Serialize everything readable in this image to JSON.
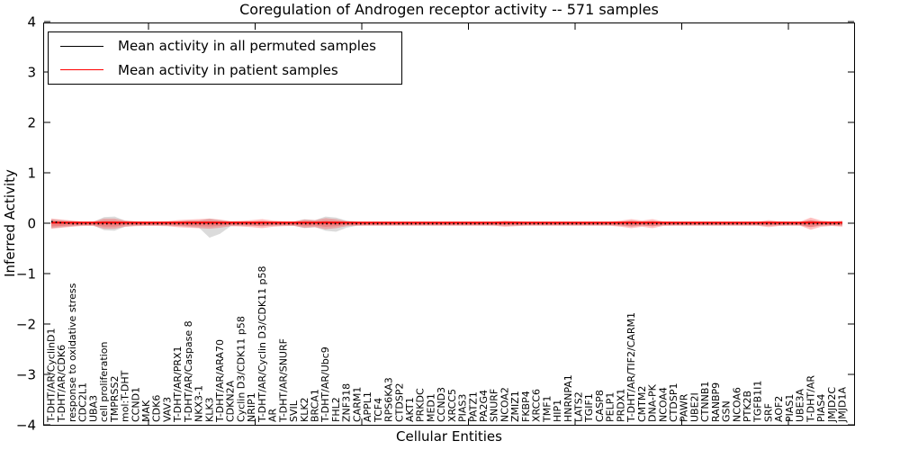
{
  "chart_data": {
    "type": "line",
    "title": "Coregulation of Androgen receptor activity -- 571 samples",
    "xlabel": "Cellular Entities",
    "ylabel": "Inferred Activity",
    "ylim": [
      -4,
      4
    ],
    "ytick_labels": [
      "4",
      "3",
      "2",
      "1",
      "0",
      "−1",
      "−2",
      "−3",
      "−4"
    ],
    "ytick_values": [
      4,
      3,
      2,
      1,
      0,
      -1,
      -2,
      -3,
      -4
    ],
    "grid": false,
    "legend_position": "upper left",
    "sample_count": "571",
    "categories": [
      "T-DHT/AR/CyclinD1",
      "T-DHT/AR/CDK6",
      "response to oxidative stress",
      "CDC2L1",
      "UBA3",
      "cell proliferation",
      "TMPRSS2",
      "mol:T-DHT",
      "CCND1",
      "MAK",
      "CDK6",
      "VAV3",
      "T-DHT/AR/PRX1",
      "T-DHT/AR/Caspase 8",
      "NKX3-1",
      "KLK3",
      "T-DHT/AR/ARA70",
      "CDKN2A",
      "Cyclin D3/CDK11 p58",
      "NRIP1",
      "T-DHT/AR/Cyclin D3/CDK11 p58",
      "AR",
      "T-DHT/AR/SNURF",
      "SVIL",
      "KLK2",
      "BRCA1",
      "T-DHT/AR/Ubc9",
      "FHL2",
      "ZNF318",
      "CARM1",
      "APPL1",
      "TCF4",
      "RPS6KA3",
      "CTDSP2",
      "AKT1",
      "PRKDC",
      "MED1",
      "CCND3",
      "XRCC5",
      "PIAS3",
      "PATZ1",
      "PA2G4",
      "SNURF",
      "NCOA2",
      "ZMIZ1",
      "FKBP4",
      "XRCC6",
      "TMF1",
      "HIP1",
      "HNRNPA1",
      "LATS2",
      "TGIF1",
      "CASP8",
      "PELP1",
      "PRDX1",
      "T-DHT/AR/TIF2/CARM1",
      "CMTM2",
      "DNA-PK",
      "NCOA4",
      "CTDSP1",
      "PAWR",
      "UBE2I",
      "CTNNB1",
      "RANBP9",
      "GSN",
      "NCOA6",
      "PTK2B",
      "TGFB1I1",
      "SRF",
      "AOF2",
      "PIAS1",
      "UBE3A",
      "T-DHT/AR",
      "PIAS4",
      "JMJD2C",
      "JMJD1A"
    ],
    "series": [
      {
        "name": "Mean activity in all permuted samples",
        "color": "#000000",
        "line_style": "dotted",
        "values": [
          0.04,
          0.015,
          0,
          0,
          0,
          0,
          0,
          0,
          0,
          0,
          0,
          0,
          0,
          0,
          0,
          0,
          0,
          0,
          0,
          0,
          0,
          0,
          0,
          0,
          0,
          0,
          0,
          0,
          0,
          0,
          0,
          0,
          0,
          0,
          0,
          0,
          0,
          0,
          0,
          0,
          0,
          0,
          0,
          0,
          0,
          0,
          0,
          0,
          0,
          0,
          0,
          0,
          0,
          0,
          0,
          0,
          0,
          0,
          0,
          0,
          0,
          0,
          0,
          0,
          0,
          0,
          0,
          0,
          0,
          0,
          0,
          0,
          0,
          0,
          0,
          0
        ]
      },
      {
        "name": "Mean activity in patient samples",
        "color": "#ff0000",
        "line_style": "solid",
        "values": [
          0.02,
          0.02,
          0.02,
          0.02,
          0.02,
          0.02,
          0.02,
          0.02,
          0.02,
          0.02,
          0.02,
          0.02,
          0.02,
          0.02,
          0.02,
          0.02,
          0.02,
          0.02,
          0.02,
          0.02,
          0.02,
          0.02,
          0.02,
          0.02,
          0.02,
          0.02,
          0.02,
          0.02,
          0.02,
          0.02,
          0.02,
          0.02,
          0.02,
          0.02,
          0.02,
          0.02,
          0.02,
          0.02,
          0.02,
          0.02,
          0.02,
          0.02,
          0.02,
          0.02,
          0.02,
          0.02,
          0.02,
          0.02,
          0.02,
          0.02,
          0.02,
          0.02,
          0.02,
          0.02,
          0.02,
          0.02,
          0.02,
          0.02,
          0.02,
          0.02,
          0.02,
          0.02,
          0.02,
          0.02,
          0.02,
          0.02,
          0.02,
          0.02,
          0.02,
          0.02,
          0.02,
          0.02,
          0.02,
          0.02,
          0.02,
          0.02
        ]
      }
    ],
    "bands": [
      {
        "name": "permuted-activity-range",
        "color": "#999999",
        "opacity": 0.35,
        "upper": [
          0.09,
          0.07,
          0.05,
          0.035,
          0.035,
          0.13,
          0.14,
          0.06,
          0.04,
          0.035,
          0.035,
          0.04,
          0.045,
          0.06,
          0.06,
          0.1,
          0.07,
          0.045,
          0.04,
          0.04,
          0.05,
          0.04,
          0.04,
          0.04,
          0.09,
          0.07,
          0.14,
          0.12,
          0.06,
          0.04,
          0.035,
          0.035,
          0.035,
          0.035,
          0.035,
          0.035,
          0.035,
          0.035,
          0.035,
          0.035,
          0.035,
          0.035,
          0.035,
          0.04,
          0.04,
          0.035,
          0.035,
          0.035,
          0.035,
          0.035,
          0.035,
          0.035,
          0.035,
          0.035,
          0.04,
          0.06,
          0.04,
          0.05,
          0.035,
          0.035,
          0.035,
          0.035,
          0.035,
          0.035,
          0.035,
          0.035,
          0.035,
          0.035,
          0.04,
          0.035,
          0.035,
          0.035,
          0.07,
          0.04,
          0.035,
          0.04
        ],
        "lower": [
          0.09,
          0.07,
          0.05,
          0.035,
          0.035,
          0.13,
          0.14,
          0.06,
          0.04,
          0.035,
          0.035,
          0.04,
          0.045,
          0.06,
          0.08,
          0.28,
          0.2,
          0.05,
          0.04,
          0.04,
          0.05,
          0.04,
          0.04,
          0.04,
          0.09,
          0.07,
          0.14,
          0.16,
          0.08,
          0.04,
          0.035,
          0.035,
          0.035,
          0.035,
          0.035,
          0.035,
          0.035,
          0.035,
          0.035,
          0.035,
          0.035,
          0.035,
          0.035,
          0.04,
          0.04,
          0.035,
          0.035,
          0.035,
          0.035,
          0.035,
          0.035,
          0.035,
          0.035,
          0.035,
          0.04,
          0.06,
          0.04,
          0.05,
          0.035,
          0.035,
          0.035,
          0.035,
          0.035,
          0.035,
          0.035,
          0.035,
          0.035,
          0.035,
          0.04,
          0.035,
          0.035,
          0.035,
          0.07,
          0.04,
          0.035,
          0.04
        ]
      },
      {
        "name": "patient-activity-range",
        "color": "#ff2a2a",
        "opacity": 0.3,
        "half_width": [
          0.1,
          0.08,
          0.06,
          0.045,
          0.045,
          0.1,
          0.1,
          0.06,
          0.05,
          0.045,
          0.045,
          0.05,
          0.07,
          0.08,
          0.09,
          0.1,
          0.08,
          0.05,
          0.055,
          0.07,
          0.09,
          0.06,
          0.05,
          0.045,
          0.08,
          0.07,
          0.11,
          0.09,
          0.05,
          0.04,
          0.04,
          0.04,
          0.04,
          0.04,
          0.04,
          0.04,
          0.04,
          0.04,
          0.04,
          0.04,
          0.04,
          0.04,
          0.04,
          0.06,
          0.05,
          0.04,
          0.04,
          0.04,
          0.04,
          0.04,
          0.04,
          0.04,
          0.04,
          0.04,
          0.06,
          0.09,
          0.06,
          0.09,
          0.045,
          0.04,
          0.04,
          0.04,
          0.04,
          0.04,
          0.04,
          0.04,
          0.04,
          0.04,
          0.07,
          0.045,
          0.04,
          0.04,
          0.12,
          0.06,
          0.045,
          0.06
        ]
      }
    ]
  }
}
